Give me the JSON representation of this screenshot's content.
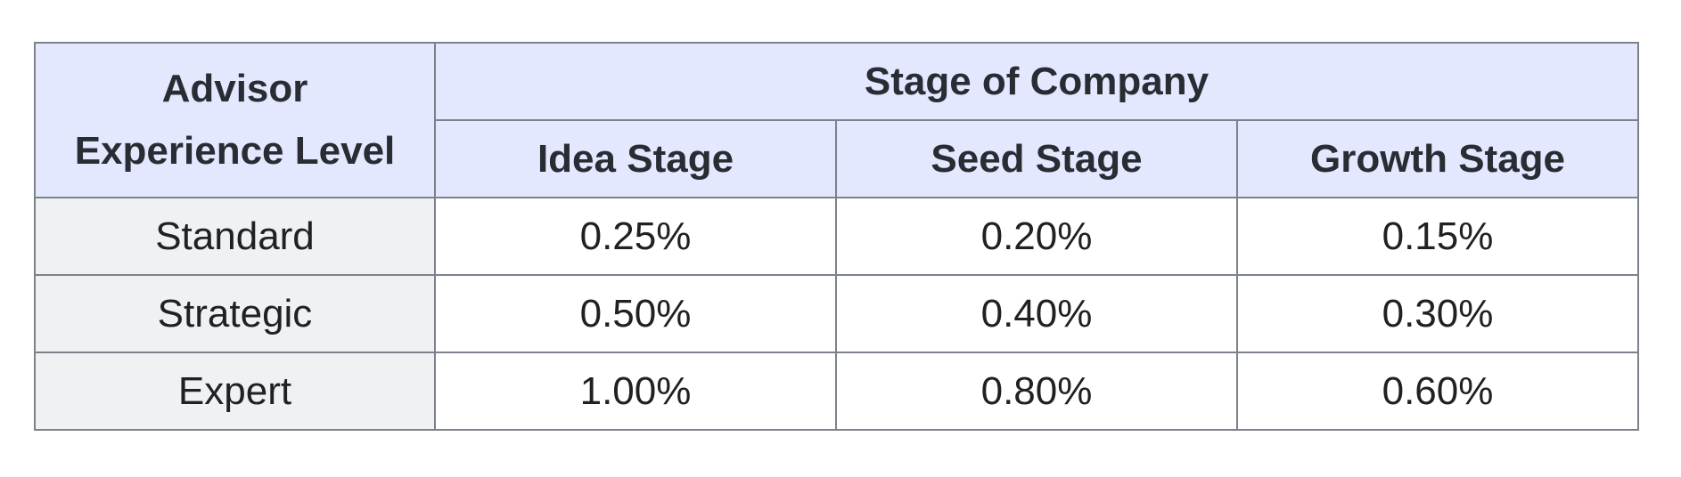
{
  "table": {
    "corner_header": {
      "line1": "Advisor",
      "line2": "Experience Level"
    },
    "group_header": "Stage of Company",
    "column_headers": [
      "Idea Stage",
      "Seed Stage",
      "Growth Stage"
    ],
    "rows": [
      {
        "level": "Standard",
        "values": [
          "0.25%",
          "0.20%",
          "0.15%"
        ]
      },
      {
        "level": "Strategic",
        "values": [
          "0.50%",
          "0.40%",
          "0.30%"
        ]
      },
      {
        "level": "Expert",
        "values": [
          "1.00%",
          "0.80%",
          "0.60%"
        ]
      }
    ]
  },
  "colors": {
    "header_bg": "#e4e8ff",
    "row_header_bg": "#f0f1f2",
    "border": "#7c818c"
  }
}
